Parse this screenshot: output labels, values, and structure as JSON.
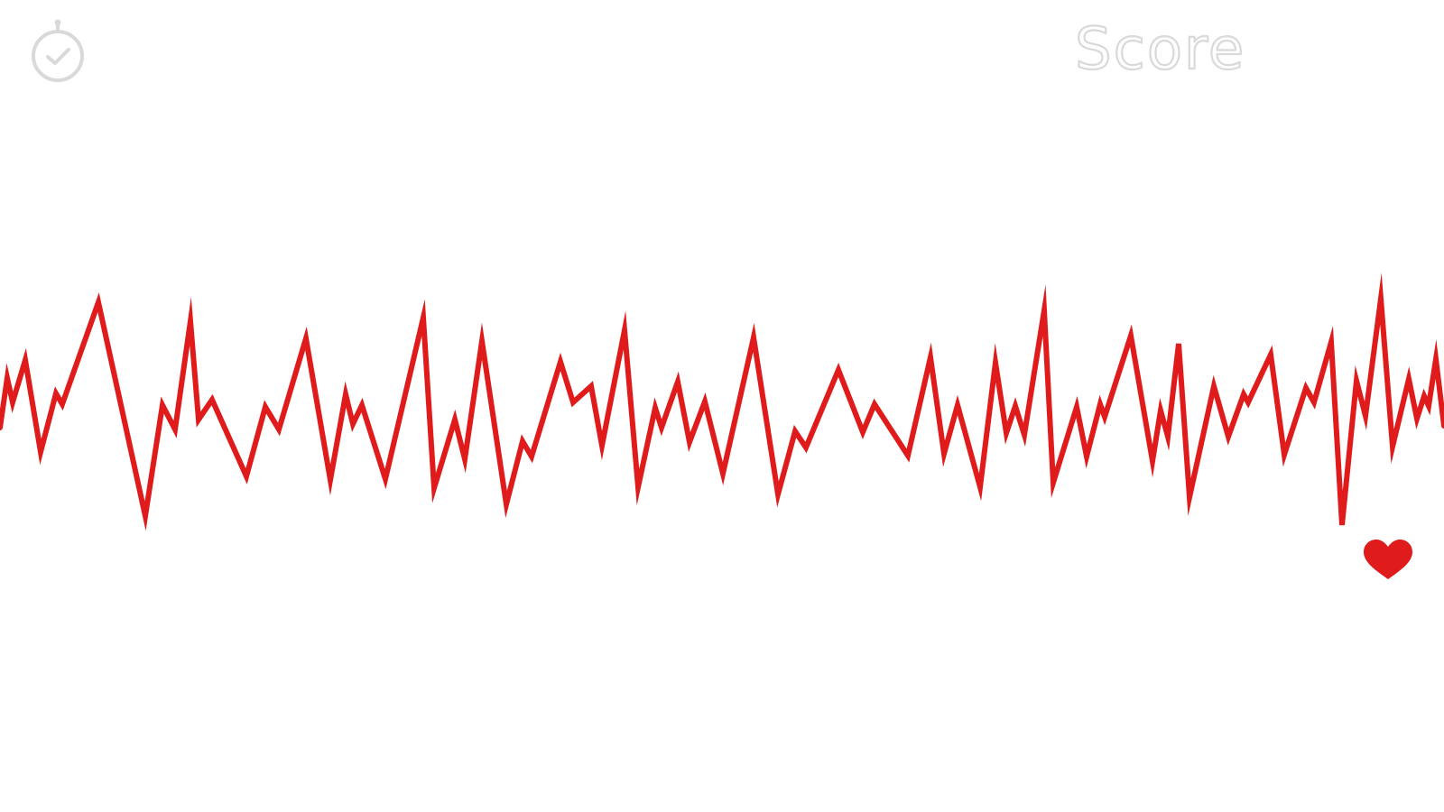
{
  "header": {
    "timer_icon": "stopwatch-check-icon",
    "score_label": "Score"
  },
  "player": {
    "icon": "heart-icon"
  },
  "colors": {
    "background": "#ffffff",
    "waveform": "#e01b1b",
    "heart": "#e01b1b",
    "hud_gray": "#d9d9d9"
  }
}
